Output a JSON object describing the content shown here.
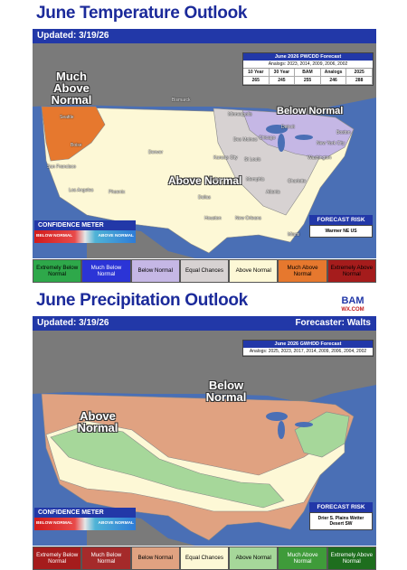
{
  "temp": {
    "heading": "June Temperature Outlook",
    "updated": "Updated: 3/19/26",
    "labels": {
      "much_above": "Much Above Normal",
      "below": "Below Normal",
      "above": "Above Normal"
    },
    "pwcdd": {
      "title": "June 2026 PWCDD Forecast",
      "analogs": "Analogs: 2023, 2014, 2009, 2006, 2002",
      "headers": [
        "10 Year",
        "30 Year",
        "BAM",
        "Analogs",
        "2025"
      ],
      "values": [
        "265",
        "245",
        "255",
        "246",
        "288"
      ]
    },
    "confidence": {
      "title": "CONFIDENCE METER",
      "left": "BELOW NORMAL",
      "right": "ABOVE NORMAL"
    },
    "risk": {
      "title": "FORECAST RISK",
      "text": "Warmer NE US"
    },
    "legend": [
      "Extremely Below Normal",
      "Much Below Normal",
      "Below Normal",
      "Equal Chances",
      "Above Normal",
      "Much Above Normal",
      "Extremely Above Normal"
    ],
    "legend_colors": [
      "#2ea84a",
      "#2b34d6",
      "#c5b7e5",
      "#d7d2d2",
      "#fdf8d6",
      "#e6782e",
      "#a51c1c"
    ],
    "cities": [
      "Seattle",
      "Boise",
      "San Francisco",
      "Los Angeles",
      "Phoenix",
      "Denver",
      "Dallas",
      "Houston",
      "New Orleans",
      "Miami",
      "Atlanta",
      "Charlotte",
      "Washington",
      "New York City",
      "Boston",
      "Chicago",
      "Detroit",
      "Minneapolis",
      "Bismarck",
      "Des Moines",
      "Kansas City",
      "St Louis",
      "Memphis",
      "Tulsa"
    ]
  },
  "precip": {
    "heading": "June Precipitation Outlook",
    "updated": "Updated: 3/19/26",
    "forecaster": "Forecaster: Walts",
    "labels": {
      "below": "Below Normal",
      "above": "Above Normal"
    },
    "gwhdd": {
      "title": "June 2026 GWHDD Forecast",
      "analogs": "Analogs: 2025, 2023, 2017, 2014, 2009, 2006, 2004, 2002"
    },
    "confidence": {
      "title": "CONFIDENCE METER",
      "left": "BELOW NORMAL",
      "right": "ABOVE NORMAL"
    },
    "risk": {
      "title": "FORECAST RISK",
      "text": "Drier S. Plains Wetter Desert SW"
    },
    "legend": [
      "Extremely Below Normal",
      "Much Below Normal",
      "Below Normal",
      "Equal Chances",
      "Above Normal",
      "Much Above Normal",
      "Extremely Above Normal"
    ],
    "legend_colors": [
      "#a51c1c",
      "#a52a2a",
      "#e0a281",
      "#fdf8d6",
      "#a6d79a",
      "#3f9b3a",
      "#1e6e1e"
    ]
  },
  "logo": {
    "text": "BAM",
    "sub": "WX.COM"
  }
}
